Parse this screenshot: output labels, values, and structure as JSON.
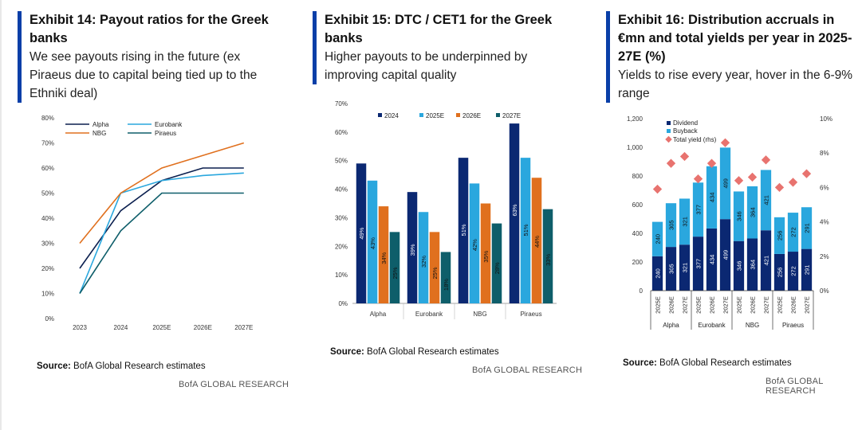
{
  "exhibits": [
    {
      "title": "Exhibit 14: Payout ratios for the Greek banks",
      "subtitle": "We see payouts rising in the future (ex Piraeus due to capital being tied up to the Ethniki deal)",
      "source_label": "Source:",
      "source_text": " BofA Global Research estimates",
      "brand": "BofA GLOBAL RESEARCH"
    },
    {
      "title": "Exhibit 15: DTC / CET1 for the Greek banks",
      "subtitle": "Higher payouts to be underpinned by improving capital quality",
      "source_label": "Source:",
      "source_text": " BofA Global Research estimates",
      "brand": "BofA GLOBAL RESEARCH"
    },
    {
      "title": "Exhibit 16: Distribution accruals in €mn and total yields per year in 2025-27E (%)",
      "subtitle": "Yields to rise every year, hover in the 6-9% range",
      "source_label": "Source:",
      "source_text": " BofA Global Research estimates",
      "brand": "BofA GLOBAL RESEARCH"
    }
  ],
  "chart_data": [
    {
      "type": "line",
      "categories": [
        "2023",
        "2024",
        "2025E",
        "2026E",
        "2027E"
      ],
      "ylim": [
        0,
        80
      ],
      "yticks": [
        "0%",
        "10%",
        "20%",
        "30%",
        "40%",
        "50%",
        "60%",
        "70%",
        "80%"
      ],
      "legend_position": "top-left",
      "series": [
        {
          "name": "Alpha",
          "color": "#0b1f4f",
          "values": [
            20,
            43,
            55,
            60,
            60
          ]
        },
        {
          "name": "Eurobank",
          "color": "#2aa7de",
          "values": [
            10,
            50,
            55,
            57,
            58
          ]
        },
        {
          "name": "NBG",
          "color": "#e0701e",
          "values": [
            30,
            50,
            60,
            65,
            70
          ]
        },
        {
          "name": "Piraeus",
          "color": "#0e5e6a",
          "values": [
            10,
            35,
            50,
            50,
            50
          ]
        }
      ]
    },
    {
      "type": "bar",
      "categories": [
        "Alpha",
        "Eurobank",
        "NBG",
        "Piraeus"
      ],
      "ylim": [
        0,
        70
      ],
      "yticks": [
        "0%",
        "10%",
        "20%",
        "30%",
        "40%",
        "50%",
        "60%",
        "70%"
      ],
      "legend_position": "top",
      "series": [
        {
          "name": "2024",
          "color": "#0b2872",
          "values": [
            49,
            39,
            51,
            63
          ],
          "labels": [
            "49%",
            "39%",
            "51%",
            "63%"
          ]
        },
        {
          "name": "2025E",
          "color": "#2aa7de",
          "values": [
            43,
            32,
            42,
            51
          ],
          "labels": [
            "43%",
            "32%",
            "42%",
            "51%"
          ]
        },
        {
          "name": "2026E",
          "color": "#e0701e",
          "values": [
            34,
            25,
            35,
            44
          ],
          "labels": [
            "34%",
            "25%",
            "35%",
            "44%"
          ]
        },
        {
          "name": "2027E",
          "color": "#0e5e6a",
          "values": [
            25,
            18,
            28,
            33
          ],
          "labels": [
            "25%",
            "18%",
            "28%",
            "33%"
          ]
        }
      ]
    },
    {
      "type": "bar",
      "stacked": true,
      "groups": [
        "Alpha",
        "Eurobank",
        "NBG",
        "Piraeus"
      ],
      "categories": [
        "2025E",
        "2026E",
        "2027E",
        "2025E",
        "2026E",
        "2027E",
        "2025E",
        "2026E",
        "2027E",
        "2025E",
        "2026E",
        "2027E"
      ],
      "ylim": [
        0,
        1200
      ],
      "yticks": [
        "0",
        "200",
        "400",
        "600",
        "800",
        "1,000",
        "1,200"
      ],
      "y2lim": [
        0,
        10
      ],
      "y2ticks": [
        "0%",
        "2%",
        "4%",
        "6%",
        "8%",
        "10%"
      ],
      "legend_position": "top-left",
      "series": [
        {
          "name": "Dividend",
          "color": "#0b2872",
          "values": [
            240,
            305,
            321,
            377,
            434,
            499,
            346,
            364,
            421,
            256,
            272,
            291
          ]
        },
        {
          "name": "Buyback",
          "color": "#2aa7de",
          "values": [
            240,
            305,
            321,
            377,
            434,
            499,
            346,
            364,
            421,
            256,
            272,
            291
          ]
        },
        {
          "name": "Total yield (rhs)",
          "color": "#e8736f",
          "values": [
            5.9,
            7.4,
            7.8,
            6.5,
            7.4,
            8.6,
            6.4,
            6.6,
            7.6,
            6.0,
            6.3,
            6.8
          ]
        }
      ]
    }
  ]
}
